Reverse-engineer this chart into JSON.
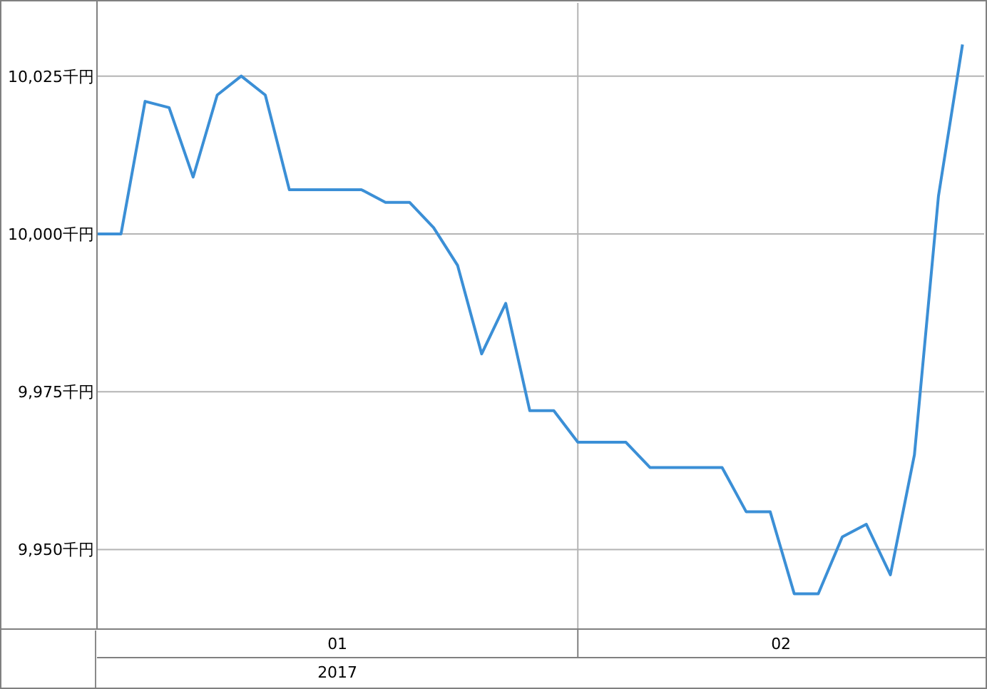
{
  "chart_data": {
    "type": "line",
    "categories": [
      null,
      null,
      null,
      null,
      null,
      null,
      null,
      null,
      null,
      null,
      null,
      null,
      null,
      null,
      null,
      null,
      null,
      null,
      null,
      null,
      null,
      null,
      null,
      null,
      null,
      null,
      null,
      null,
      null,
      null,
      null,
      null,
      null,
      null,
      null,
      null,
      null
    ],
    "series": [
      {
        "color": "#3b8fd6",
        "values": [
          10000,
          10000,
          10021,
          10020,
          10009,
          10022,
          10025,
          10022,
          10007,
          10007,
          10007,
          10007,
          10005,
          10005,
          10001,
          9995,
          9981,
          9989,
          9972,
          9972,
          9967,
          9967,
          9967,
          9963,
          9963,
          9963,
          9963,
          9956,
          9956,
          9943,
          9943,
          9952,
          9954,
          9946,
          9965,
          10006,
          10030
        ]
      }
    ],
    "ylim": [
      9937.4,
      10036.6
    ],
    "yticks": [
      {
        "value": 9950,
        "label": "9,950千円"
      },
      {
        "value": 9975,
        "label": "9,975千円"
      },
      {
        "value": 10000,
        "label": "10,000千円"
      },
      {
        "value": 10025,
        "label": "10,025千円"
      }
    ],
    "grid": "y",
    "annotations": [
      "01",
      "02",
      "2017"
    ]
  }
}
